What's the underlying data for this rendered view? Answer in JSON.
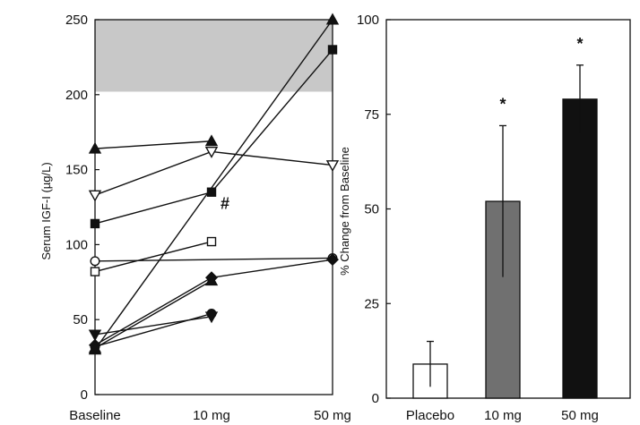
{
  "chart_data": [
    {
      "type": "line",
      "title": "",
      "xlabel": "",
      "ylabel": "Serum IGF-I (µg/L)",
      "categories": [
        "Baseline",
        "10 mg",
        "50 mg"
      ],
      "ylim": [
        0,
        250
      ],
      "yticks": [
        0,
        50,
        100,
        150,
        200,
        250
      ],
      "grid": false,
      "normal_range_band": [
        202,
        250
      ],
      "band_color": "#c8c8c8",
      "series": [
        {
          "marker": "triangle-up-filled",
          "values": [
            164,
            169,
            null
          ]
        },
        {
          "marker": "triangle-up-filled",
          "values": [
            30,
            null,
            250
          ]
        },
        {
          "marker": "triangle-down-open",
          "values": [
            133,
            162,
            153
          ]
        },
        {
          "marker": "square-filled",
          "values": [
            114,
            135,
            230
          ]
        },
        {
          "marker": "square-open",
          "values": [
            82,
            102,
            null
          ]
        },
        {
          "marker": "circle-open",
          "values": [
            89,
            null,
            91
          ]
        },
        {
          "marker": "diamond-filled",
          "values": [
            33,
            78,
            90
          ]
        },
        {
          "marker": "triangle-down-filled",
          "values": [
            40,
            52,
            null
          ]
        },
        {
          "marker": "circle-filled",
          "values": [
            32,
            54,
            null
          ]
        },
        {
          "marker": "triangle-up-filled",
          "values": [
            31,
            76,
            null
          ]
        }
      ],
      "annotations": [
        {
          "text": "#",
          "category": "10 mg",
          "value": 135
        }
      ]
    },
    {
      "type": "bar",
      "title": "",
      "xlabel": "",
      "ylabel": "% Change from Baseline",
      "categories": [
        "Placebo",
        "10 mg",
        "50 mg"
      ],
      "values": [
        9,
        52,
        79
      ],
      "error_bars": [
        6,
        20,
        9
      ],
      "bar_colors": [
        "#ffffff",
        "#707070",
        "#111111"
      ],
      "ylim": [
        0,
        100
      ],
      "yticks": [
        0,
        25,
        50,
        75,
        100
      ],
      "grid": false,
      "significance_markers": [
        "",
        "*",
        "*"
      ]
    }
  ]
}
